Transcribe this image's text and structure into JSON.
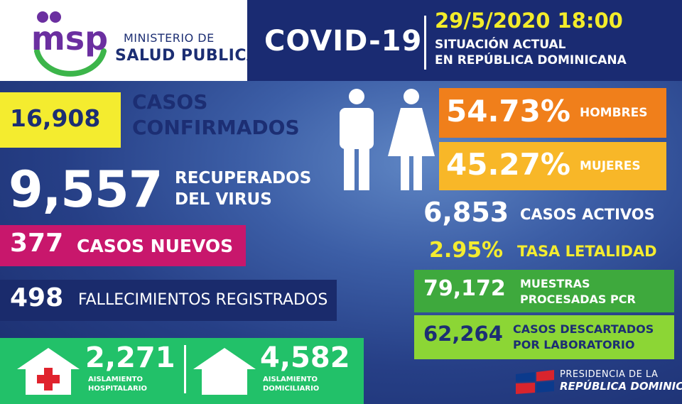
{
  "logo": {
    "mark_text": "msp",
    "line1": "MINISTERIO DE",
    "line2": "SALUD PUBLICA",
    "colors": {
      "purple": "#6b2fa0",
      "green": "#3cb54a"
    },
    "icon": "msp-logo-icon"
  },
  "header": {
    "title": "COVID-19",
    "datetime": "29/5/2020 18:00",
    "subtitle_line1": "SITUACIÓN ACTUAL",
    "subtitle_line2": "EN REPÚBLICA DOMINICANA"
  },
  "confirmed": {
    "value": "16,908",
    "label_line1": "CASOS",
    "label_line2": "CONFIRMADOS"
  },
  "recovered": {
    "value": "9,557",
    "label_line1": "RECUPERADOS",
    "label_line2": "DEL VIRUS"
  },
  "new_cases": {
    "value": "377",
    "label": "CASOS NUEVOS"
  },
  "deaths": {
    "value": "498",
    "label": "FALLECIMIENTOS REGISTRADOS"
  },
  "hospital_isolation": {
    "value": "2,271",
    "label_line1": "AISLAMIENTO",
    "label_line2": "HOSPITALARIO",
    "icon": "hospital-icon"
  },
  "home_isolation": {
    "value": "4,582",
    "label_line1": "AISLAMIENTO",
    "label_line2": "DOMICILIARIO",
    "icon": "house-icon"
  },
  "gender": {
    "icons": [
      "man-icon",
      "woman-icon"
    ],
    "men": {
      "value": "54.73%",
      "label": "HOMBRES"
    },
    "women": {
      "value": "45.27%",
      "label": "MUJERES"
    }
  },
  "active": {
    "value": "6,853",
    "label": "CASOS ACTIVOS"
  },
  "lethality": {
    "value": "2.95%",
    "label": "TASA LETALIDAD"
  },
  "pcr": {
    "value": "79,172",
    "label_line1": "MUESTRAS",
    "label_line2": "PROCESADAS PCR"
  },
  "discarded": {
    "value": "62,264",
    "label_line1": "CASOS DESCARTADOS",
    "label_line2": "POR LABORATORIO"
  },
  "presidency": {
    "line1": "PRESIDENCIA DE LA",
    "line2": "REPÚBLICA DOMINICANA",
    "icon": "dominican-flag-icon"
  },
  "colors": {
    "navy": "#1a2b72",
    "yellow": "#f4ec2f",
    "magenta": "#c8176c",
    "green": "#22c169",
    "orange": "#f07f1b",
    "amber": "#f8b728",
    "dark_green": "#3ea93d",
    "lime": "#8cd635"
  }
}
